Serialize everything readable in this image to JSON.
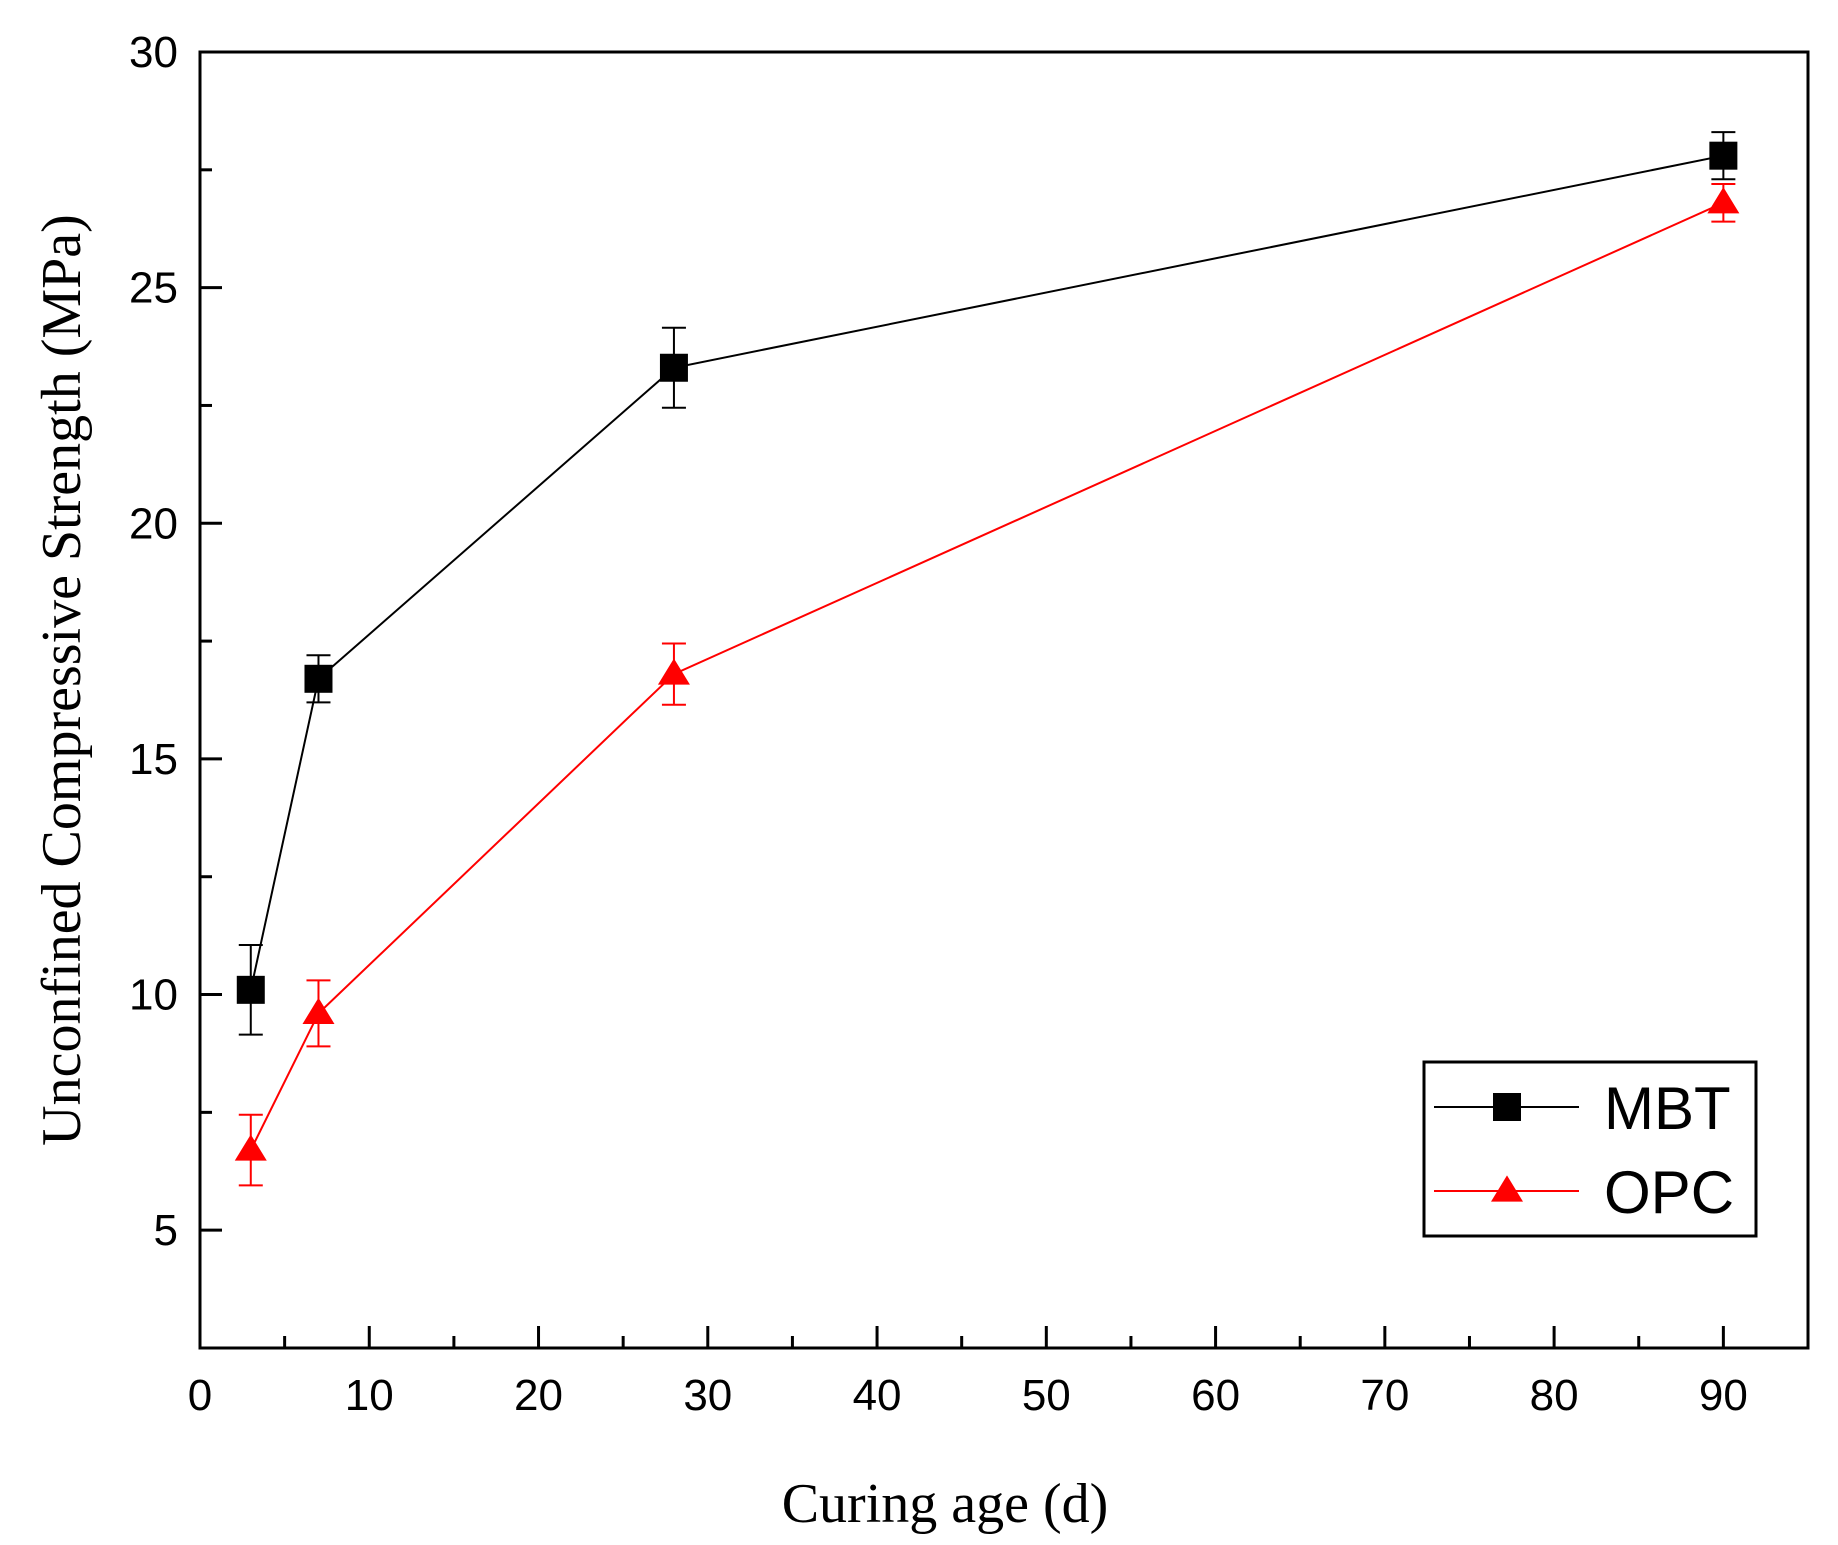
{
  "chart_data": {
    "type": "line",
    "title": "",
    "xlabel": "Curing age (d)",
    "ylabel": "Unconfined Compressive Strength (MPa)",
    "xlim": [
      0,
      95
    ],
    "ylim": [
      2.5,
      30
    ],
    "xticks": [
      0,
      10,
      20,
      30,
      40,
      50,
      60,
      70,
      80,
      90
    ],
    "xtick_labels": [
      "0",
      "10",
      "20",
      "30",
      "40",
      "50",
      "60",
      "70",
      "80",
      "90"
    ],
    "yticks": [
      5,
      10,
      15,
      20,
      25,
      30
    ],
    "ytick_labels": [
      "5",
      "10",
      "15",
      "20",
      "25",
      "30"
    ],
    "grid": false,
    "legend_position": "bottom-right",
    "series": [
      {
        "name": "MBT",
        "marker": "square",
        "color": "#000000",
        "x": [
          3,
          7,
          28,
          90
        ],
        "y": [
          10.1,
          16.7,
          23.3,
          27.8
        ],
        "error": [
          0.95,
          0.5,
          0.85,
          0.5
        ]
      },
      {
        "name": "OPC",
        "marker": "triangle",
        "color": "#ff0000",
        "x": [
          3,
          7,
          28,
          90
        ],
        "y": [
          6.7,
          9.6,
          16.8,
          26.8
        ],
        "error": [
          0.75,
          0.7,
          0.65,
          0.4
        ]
      }
    ]
  }
}
